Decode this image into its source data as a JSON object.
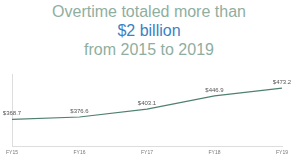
{
  "chart_data": {
    "type": "line",
    "title": [
      "Overtime totaled more than",
      "$2 billion",
      "from 2015 to 2019"
    ],
    "categories": [
      "FY15",
      "FY16",
      "FY17",
      "FY18",
      "FY19"
    ],
    "values": [
      368.7,
      376.6,
      403.1,
      446.9,
      473.2
    ],
    "value_labels": [
      "$368.7",
      "$376.6",
      "$403.1",
      "$446.9",
      "$473.2"
    ],
    "data_labels": true,
    "color": "#4f8070",
    "ylim": [
      280,
      520
    ],
    "grid": false,
    "tick_labels": "x"
  }
}
